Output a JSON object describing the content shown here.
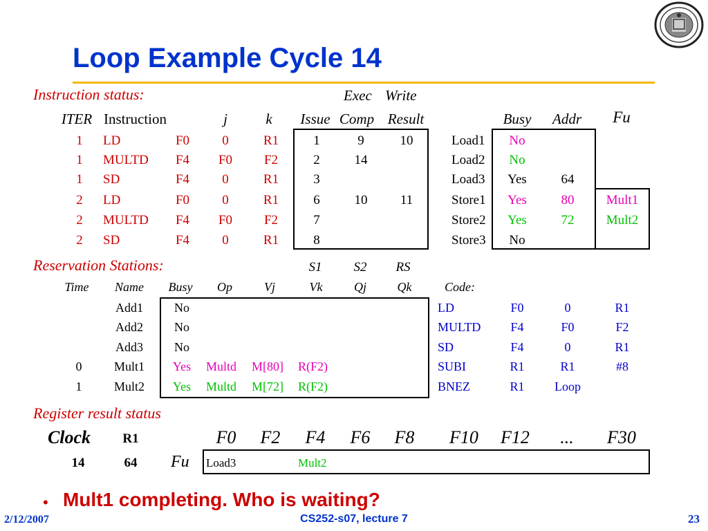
{
  "title": "Loop Example Cycle 14",
  "instruction_status": {
    "heading": "Instruction status:",
    "header_top": {
      "exec": "Exec",
      "write": "Write"
    },
    "headers": {
      "iter": "ITER",
      "instruction": "Instruction",
      "j": "j",
      "k": "k",
      "issue": "Issue",
      "comp": "Comp",
      "result": "Result"
    },
    "rows": [
      {
        "iter": "1",
        "op": "LD",
        "dest": "F0",
        "j": "0",
        "k": "R1",
        "issue": "1",
        "comp": "9",
        "result": "10"
      },
      {
        "iter": "1",
        "op": "MULTD",
        "dest": "F4",
        "j": "F0",
        "k": "F2",
        "issue": "2",
        "comp": "14",
        "result": ""
      },
      {
        "iter": "1",
        "op": "SD",
        "dest": "F4",
        "j": "0",
        "k": "R1",
        "issue": "3",
        "comp": "",
        "result": ""
      },
      {
        "iter": "2",
        "op": "LD",
        "dest": "F0",
        "j": "0",
        "k": "R1",
        "issue": "6",
        "comp": "10",
        "result": "11"
      },
      {
        "iter": "2",
        "op": "MULTD",
        "dest": "F4",
        "j": "F0",
        "k": "F2",
        "issue": "7",
        "comp": "",
        "result": ""
      },
      {
        "iter": "2",
        "op": "SD",
        "dest": "F4",
        "j": "0",
        "k": "R1",
        "issue": "8",
        "comp": "",
        "result": ""
      }
    ]
  },
  "load_store": {
    "headers": {
      "busy": "Busy",
      "addr": "Addr",
      "fu": "Fu"
    },
    "rows": [
      {
        "name": "Load1",
        "busy": "No",
        "addr": "",
        "fu": ""
      },
      {
        "name": "Load2",
        "busy": "No",
        "addr": "",
        "fu": ""
      },
      {
        "name": "Load3",
        "busy": "Yes",
        "addr": "64",
        "fu": ""
      },
      {
        "name": "Store1",
        "busy": "Yes",
        "addr": "80",
        "fu": "Mult1"
      },
      {
        "name": "Store2",
        "busy": "Yes",
        "addr": "72",
        "fu": "Mult2"
      },
      {
        "name": "Store3",
        "busy": "No",
        "addr": "",
        "fu": ""
      }
    ]
  },
  "reservation_stations": {
    "heading": "Reservation Stations:",
    "header_top": {
      "s1": "S1",
      "s2": "S2",
      "rs": "RS"
    },
    "headers": {
      "time": "Time",
      "name": "Name",
      "busy": "Busy",
      "op": "Op",
      "vj": "Vj",
      "vk": "Vk",
      "qj": "Qj",
      "qk": "Qk",
      "code": "Code:"
    },
    "rows": [
      {
        "time": "",
        "name": "Add1",
        "busy": "No",
        "op": "",
        "vj": "",
        "vk": ""
      },
      {
        "time": "",
        "name": "Add2",
        "busy": "No",
        "op": "",
        "vj": "",
        "vk": ""
      },
      {
        "time": "",
        "name": "Add3",
        "busy": "No",
        "op": "",
        "vj": "",
        "vk": ""
      },
      {
        "time": "0",
        "name": "Mult1",
        "busy": "Yes",
        "op": "Multd",
        "vj": "M[80]",
        "vk": "R(F2)"
      },
      {
        "time": "1",
        "name": "Mult2",
        "busy": "Yes",
        "op": "Multd",
        "vj": "M[72]",
        "vk": "R(F2)"
      }
    ]
  },
  "code": [
    {
      "op": "LD",
      "a": "F0",
      "b": "0",
      "c": "R1"
    },
    {
      "op": "MULTD",
      "a": "F4",
      "b": "F0",
      "c": "F2"
    },
    {
      "op": "SD",
      "a": "F4",
      "b": "0",
      "c": "R1"
    },
    {
      "op": "SUBI",
      "a": "R1",
      "b": "R1",
      "c": "#8"
    },
    {
      "op": "BNEZ",
      "a": "R1",
      "b": "Loop",
      "c": ""
    }
  ],
  "register_result": {
    "heading": "Register result status",
    "clock_label": "Clock",
    "r1_label": "R1",
    "clock_value": "14",
    "r1_value": "64",
    "fu_label": "Fu",
    "registers": [
      "F0",
      "F2",
      "F4",
      "F6",
      "F8",
      "F10",
      "F12",
      "...",
      "F30"
    ],
    "fu_values": {
      "F0": "Load3",
      "F4": "Mult2"
    }
  },
  "bullet": "Mult1 completing.  Who is waiting?",
  "footer": {
    "date": "2/12/2007",
    "course": "CS252-s07, lecture 7",
    "page": "23"
  },
  "colors": {
    "title_blue": "#0033cc",
    "rule_yellow": "#f5b800",
    "heading_red": "#cc0000",
    "magenta": "#e600b4",
    "green": "#00c000",
    "code_blue": "#0000cc"
  }
}
